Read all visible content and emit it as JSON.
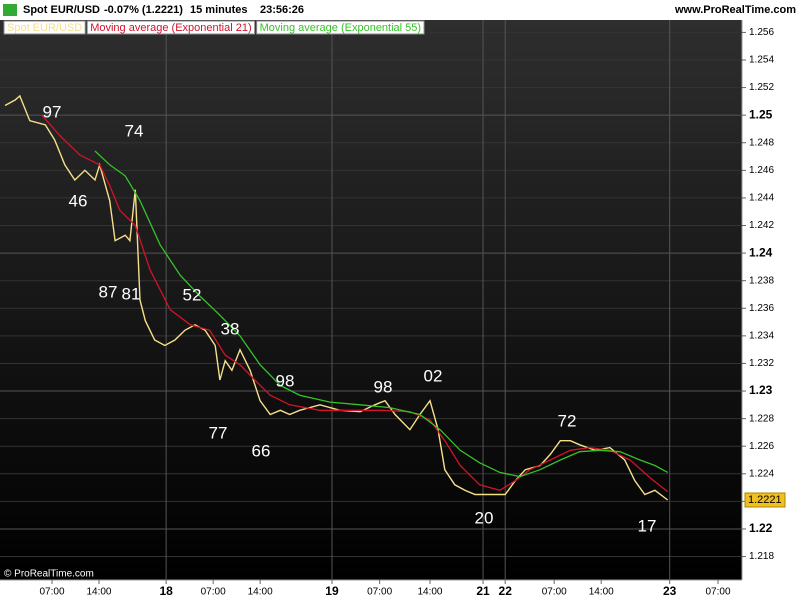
{
  "chart_data": {
    "type": "line",
    "header": {
      "symbol": "Spot EUR/USD",
      "change": "-0.07% (1.2221)",
      "interval": "15 minutes",
      "time": "23:56:26",
      "site": "www.ProRealTime.com"
    },
    "footer": "© ProRealTime.com",
    "last_price": 1.2221,
    "series": [
      {
        "name": "Spot EUR/USD",
        "color": "#f5e08a",
        "x": [
          0,
          1.5,
          2.2,
          3.7,
          6,
          7.4,
          8.9,
          10.4,
          11.9,
          13.4,
          14.1,
          15.6,
          16.4,
          17.9,
          18.6,
          19.4,
          20.1,
          20.9,
          22.3,
          23.8,
          25.3,
          26.8,
          28.3,
          29.8,
          31.3,
          32,
          32.8,
          33.8,
          35,
          36.5,
          38,
          39.5,
          41,
          42.4,
          43.9,
          46.9,
          49.9,
          52.9,
          55.1,
          56.6,
          58.1,
          60.3,
          61.8,
          63.3,
          64.5,
          65.5,
          67,
          68.5,
          70,
          72.2,
          74.5,
          76,
          77.5,
          79.7,
          81.2,
          82.7,
          84.2,
          85.6,
          87.9,
          90.1,
          92.3,
          93.8,
          95.3,
          96.8,
          98.7
        ],
        "values": [
          1.2507,
          1.2511,
          1.2514,
          1.2496,
          1.2493,
          1.2482,
          1.2464,
          1.2453,
          1.246,
          1.2453,
          1.2464,
          1.2438,
          1.2409,
          1.2413,
          1.2409,
          1.2446,
          1.2366,
          1.2351,
          1.2337,
          1.2333,
          1.2337,
          1.2344,
          1.2348,
          1.2344,
          1.2333,
          1.2308,
          1.2322,
          1.2315,
          1.233,
          1.2315,
          1.2293,
          1.2283,
          1.2286,
          1.2283,
          1.2286,
          1.229,
          1.2286,
          1.2285,
          1.229,
          1.2293,
          1.2283,
          1.2272,
          1.2283,
          1.2293,
          1.2272,
          1.2243,
          1.2232,
          1.2228,
          1.2225,
          1.2225,
          1.2225,
          1.2235,
          1.2243,
          1.2246,
          1.2254,
          1.2264,
          1.2264,
          1.2261,
          1.2257,
          1.2259,
          1.225,
          1.2235,
          1.2225,
          1.2228,
          1.2221
        ]
      },
      {
        "name": "Moving average (Exponential 21)",
        "color": "#d3122a",
        "x": [
          5.5,
          8.2,
          11.2,
          14.1,
          15.6,
          17.1,
          19.4,
          21.6,
          24.6,
          27.6,
          30.5,
          32.8,
          35,
          37.2,
          39.5,
          42.4,
          46.9,
          51.4,
          55.9,
          60.3,
          63.3,
          65.5,
          67.8,
          70.7,
          73.7,
          76,
          78.2,
          81.2,
          84.2,
          87.1,
          90.1,
          93.1,
          96.1,
          98.7
        ],
        "values": [
          1.25,
          1.2485,
          1.2471,
          1.2464,
          1.2449,
          1.2431,
          1.242,
          1.2388,
          1.2359,
          1.2348,
          1.2344,
          1.2326,
          1.2319,
          1.2308,
          1.2297,
          1.229,
          1.2286,
          1.2286,
          1.2286,
          1.2285,
          1.2279,
          1.2264,
          1.2246,
          1.2232,
          1.2228,
          1.2235,
          1.2243,
          1.225,
          1.2257,
          1.2259,
          1.2257,
          1.225,
          1.2237,
          1.2227
        ]
      },
      {
        "name": "Moving average (Exponential 55)",
        "color": "#36c22a",
        "x": [
          13.4,
          15.6,
          17.9,
          20.1,
          23.1,
          26.1,
          29,
          32,
          35,
          38,
          41,
          43.9,
          48.4,
          52.9,
          57.3,
          61.8,
          64.8,
          67.8,
          70.7,
          73.7,
          76.7,
          79.7,
          82.7,
          85.6,
          88.6,
          91.6,
          94.6,
          96.8,
          98.7
        ],
        "values": [
          1.2474,
          1.2464,
          1.2456,
          1.2438,
          1.2406,
          1.2384,
          1.2369,
          1.2355,
          1.234,
          1.2319,
          1.2304,
          1.2297,
          1.2292,
          1.229,
          1.2288,
          1.2283,
          1.2272,
          1.2257,
          1.2248,
          1.2241,
          1.2238,
          1.2243,
          1.225,
          1.2256,
          1.2257,
          1.2256,
          1.225,
          1.2246,
          1.2241
        ]
      }
    ],
    "annotations": [
      "97",
      "74",
      "46",
      "87",
      "81",
      "52",
      "38",
      "77",
      "98",
      "66",
      "98",
      "02",
      "20",
      "72",
      "17"
    ],
    "xlim": [
      -0.745,
      109.77
    ],
    "xticks": [
      {
        "value": 7,
        "label": "07:00"
      },
      {
        "value": 14,
        "label": "14:00"
      },
      {
        "value": 24,
        "label": "18"
      },
      {
        "value": 31,
        "label": "07:00"
      },
      {
        "value": 38,
        "label": "14:00"
      },
      {
        "value": 48.7,
        "label": "19"
      },
      {
        "value": 55.8,
        "label": "07:00"
      },
      {
        "value": 63.3,
        "label": "14:00"
      },
      {
        "value": 71.2,
        "label": "21"
      },
      {
        "value": 74.5,
        "label": "22"
      },
      {
        "value": 81.8,
        "label": "07:00"
      },
      {
        "value": 88.8,
        "label": "14:00"
      },
      {
        "value": 99,
        "label": "23"
      },
      {
        "value": 106.2,
        "label": "07:00"
      }
    ],
    "ylim": [
      1.2163,
      1.2569
    ],
    "yticks": [
      1.218,
      1.22,
      1.222,
      1.224,
      1.226,
      1.228,
      1.23,
      1.232,
      1.234,
      1.236,
      1.238,
      1.24,
      1.242,
      1.244,
      1.246,
      1.248,
      1.25,
      1.252,
      1.254,
      1.256
    ],
    "grid": true
  }
}
